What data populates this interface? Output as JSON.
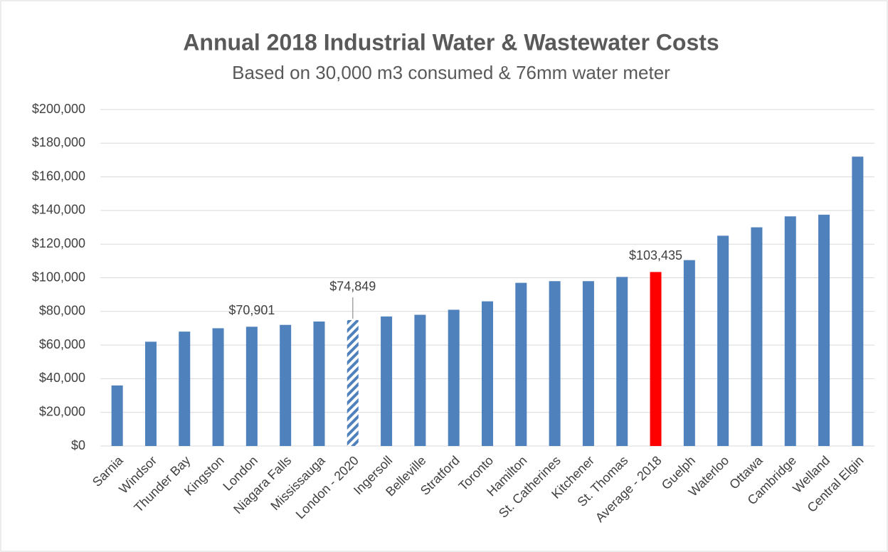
{
  "chart_data": {
    "type": "bar",
    "title": "Annual 2018 Industrial Water & Wastewater Costs",
    "subtitle": "Based on 30,000 m3 consumed & 76mm water meter",
    "categories": [
      "Sarnia",
      "Windsor",
      "Thunder Bay",
      "Kingston",
      "London",
      "Niagara Falls",
      "Mississauga",
      "London - 2020",
      "Ingersoll",
      "Belleville",
      "Stratford",
      "Toronto",
      "Hamilton",
      "St. Catherines",
      "Kitchener",
      "St. Thomas",
      "Average - 2018",
      "Guelph",
      "Waterloo",
      "Ottawa",
      "Cambridge",
      "Welland",
      "Central Elgin"
    ],
    "values": [
      36000,
      62000,
      68000,
      70000,
      70901,
      72000,
      74000,
      74849,
      77000,
      78000,
      81000,
      86000,
      97000,
      98000,
      98000,
      100500,
      103435,
      110500,
      125000,
      130000,
      136500,
      137500,
      172000
    ],
    "value_labels": [
      null,
      null,
      null,
      null,
      "$70,901",
      null,
      null,
      "$74,849",
      null,
      null,
      null,
      null,
      null,
      null,
      null,
      null,
      "$103,435",
      null,
      null,
      null,
      null,
      null,
      null
    ],
    "colors": [
      "#4f81bd",
      "#4f81bd",
      "#4f81bd",
      "#4f81bd",
      "#4f81bd",
      "#4f81bd",
      "#4f81bd",
      "#4f81bd",
      "#4f81bd",
      "#4f81bd",
      "#4f81bd",
      "#4f81bd",
      "#4f81bd",
      "#4f81bd",
      "#4f81bd",
      "#4f81bd",
      "#ff0000",
      "#4f81bd",
      "#4f81bd",
      "#4f81bd",
      "#4f81bd",
      "#4f81bd",
      "#4f81bd"
    ],
    "patterns": [
      "solid",
      "solid",
      "solid",
      "solid",
      "solid",
      "solid",
      "solid",
      "hatched",
      "solid",
      "solid",
      "solid",
      "solid",
      "solid",
      "solid",
      "solid",
      "solid",
      "solid",
      "solid",
      "solid",
      "solid",
      "solid",
      "solid",
      "solid"
    ],
    "ylim": [
      0,
      200000
    ],
    "yticks": [
      {
        "value": 0,
        "label": "$0"
      },
      {
        "value": 20000,
        "label": "$20,000"
      },
      {
        "value": 40000,
        "label": "$40,000"
      },
      {
        "value": 60000,
        "label": "$60,000"
      },
      {
        "value": 80000,
        "label": "$80,000"
      },
      {
        "value": 100000,
        "label": "$100,000"
      },
      {
        "value": 120000,
        "label": "$120,000"
      },
      {
        "value": 140000,
        "label": "$140,000"
      },
      {
        "value": 160000,
        "label": "$160,000"
      },
      {
        "value": 180000,
        "label": "$180,000"
      },
      {
        "value": 200000,
        "label": "$200,000"
      }
    ],
    "grid": true
  }
}
